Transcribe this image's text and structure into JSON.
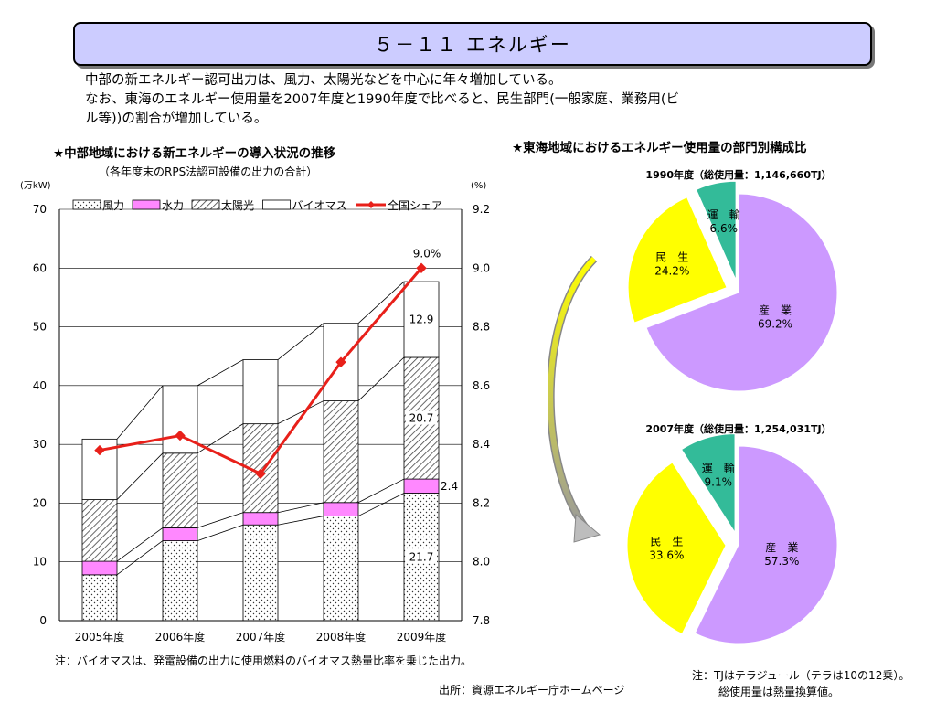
{
  "page": {
    "title": "５－１１ エネルギー",
    "intro_lines": [
      "中部の新エネルギー認可出力は、風力、太陽光などを中心に年々増加している。",
      "なお、東海のエネルギー使用量を2007年度と1990年度で比べると、民生部門(一般家庭、業務用(ビ",
      "ル等))の割合が増加している。"
    ],
    "left_heading": "★中部地域における新エネルギーの導入状況の推移",
    "left_subheading": "（各年度末のRPS法認可設備の出力の合計）",
    "right_heading": "★東海地域におけるエネルギー使用量の部門別構成比",
    "note_left": "注：バイオマスは、発電設備の出力に使用燃料のバイオマス熱量比率を乗じた出力。",
    "source": "出所：資源エネルギー庁ホームページ",
    "note_right_1": "注：TJはテラジュール（テラは10の12乗）。",
    "note_right_2": "総使用量は熱量換算値。"
  },
  "chart_data": [
    {
      "type": "bar",
      "stacked": true,
      "categories": [
        "2005年度",
        "2006年度",
        "2007年度",
        "2008年度",
        "2009年度"
      ],
      "series": [
        {
          "name": "風力",
          "values": [
            7.8,
            13.6,
            16.3,
            17.8,
            21.7
          ],
          "pattern": "dots"
        },
        {
          "name": "水力",
          "values": [
            2.3,
            2.2,
            2.1,
            2.3,
            2.4
          ],
          "color": "#ff88ff"
        },
        {
          "name": "太陽光",
          "values": [
            10.5,
            12.7,
            15.1,
            17.3,
            20.7
          ],
          "pattern": "hatch"
        },
        {
          "name": "バイオマス",
          "values": [
            10.3,
            11.5,
            10.9,
            13.2,
            12.9
          ],
          "color": "#ffffff"
        }
      ],
      "line_series": {
        "name": "全国シェア",
        "values": [
          8.38,
          8.43,
          8.3,
          8.68,
          9.0
        ],
        "color": "#e8201a",
        "axis": "right"
      },
      "data_labels": {
        "風力_2009": "21.7",
        "水力_2009": "2.4",
        "太陽光_2009": "20.7",
        "バイオマス_2009": "12.9",
        "全国シェア_2009": "9.0%"
      },
      "ylabel_left": "(万kW)",
      "ylabel_right": "(%)",
      "ylim": [
        0,
        70
      ],
      "ylim_right": [
        7.8,
        9.2
      ],
      "yticks_left": [
        "0",
        "10",
        "20",
        "30",
        "40",
        "50",
        "60",
        "70"
      ],
      "yticks_right": [
        "7.8",
        "8.0",
        "8.2",
        "8.4",
        "8.6",
        "8.8",
        "9.0",
        "9.2"
      ],
      "grid": true,
      "legend": "top"
    },
    {
      "type": "pie",
      "title": "1990年度（総使用量：1,146,660TJ）",
      "slices": [
        {
          "name": "産　業",
          "value": 69.2,
          "label": "69.2%",
          "color": "#cc99ff"
        },
        {
          "name": "民　生",
          "value": 24.2,
          "label": "24.2%",
          "color": "#ffff00"
        },
        {
          "name": "運　輸",
          "value": 6.6,
          "label": "6.6%",
          "color": "#33bb99"
        }
      ]
    },
    {
      "type": "pie",
      "title": "2007年度（総使用量：1,254,031TJ）",
      "slices": [
        {
          "name": "産　業",
          "value": 57.3,
          "label": "57.3%",
          "color": "#cc99ff"
        },
        {
          "name": "民　生",
          "value": 33.6,
          "label": "33.6%",
          "color": "#ffff00"
        },
        {
          "name": "運　輸",
          "value": 9.1,
          "label": "9.1%",
          "color": "#33bb99"
        }
      ]
    }
  ]
}
